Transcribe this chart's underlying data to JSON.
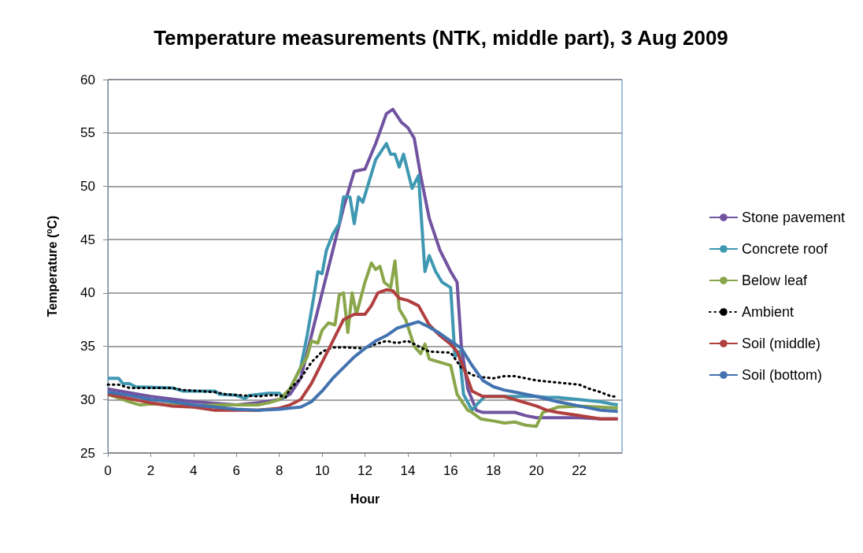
{
  "chart_data": {
    "type": "line",
    "title": "Temperature measurements (NTK, middle part), 3 Aug 2009",
    "xlabel": "Hour",
    "ylabel": "Temperature ($^{o}$C)",
    "xlim": [
      0,
      24
    ],
    "xticks": [
      0,
      2,
      4,
      6,
      8,
      10,
      12,
      14,
      16,
      18,
      20,
      22
    ],
    "ylim": [
      25,
      60
    ],
    "yticks": [
      25,
      30,
      35,
      40,
      45,
      50,
      55,
      60
    ],
    "grid": "y",
    "legend": "right",
    "marker": "none",
    "series": [
      {
        "name": "Stone pavement",
        "color": "#7153a0",
        "line_style": "solid",
        "x": [
          0,
          2,
          4,
          6,
          7,
          8,
          8.5,
          9,
          9.5,
          10,
          10.5,
          11,
          11.5,
          12,
          12.5,
          13,
          13.3,
          13.7,
          14,
          14.3,
          14.6,
          15,
          15.5,
          16,
          16.3,
          16.5,
          16.8,
          17.2,
          17.5,
          18,
          19,
          19.5,
          20,
          21,
          22,
          23,
          23.8
        ],
        "values": [
          31,
          30.3,
          29.8,
          29.5,
          29.7,
          30,
          30.5,
          32,
          36,
          40,
          44,
          48,
          51.4,
          51.6,
          54,
          56.8,
          57.2,
          56,
          55.5,
          54.5,
          51,
          47,
          44,
          42,
          41,
          35,
          31,
          29,
          28.8,
          28.8,
          28.8,
          28.5,
          28.3,
          28.3,
          28.3,
          28.2,
          28.2
        ]
      },
      {
        "name": "Concrete roof",
        "color": "#3f98b2",
        "line_style": "solid",
        "x": [
          0,
          0.5,
          0.7,
          1,
          1.3,
          3,
          3.5,
          5,
          5.2,
          6,
          6.4,
          6.6,
          7.5,
          8,
          8.2,
          8.5,
          9,
          9.3,
          9.6,
          9.8,
          10,
          10.2,
          10.5,
          10.8,
          11,
          11.3,
          11.5,
          11.7,
          11.9,
          12.2,
          12.5,
          13,
          13.2,
          13.4,
          13.6,
          13.8,
          14.2,
          14.5,
          14.8,
          15,
          15.3,
          15.6,
          16,
          16.2,
          16.4,
          16.6,
          17,
          17.2,
          17.6,
          18,
          19,
          20,
          20.5,
          21,
          23,
          23.5,
          23.8
        ],
        "values": [
          32,
          32,
          31.5,
          31.5,
          31.2,
          31.1,
          30.8,
          30.8,
          30.5,
          30.4,
          30.1,
          30.4,
          30.6,
          30.6,
          30.2,
          31,
          33,
          36,
          39.5,
          42,
          41.8,
          44,
          45.5,
          46.5,
          49,
          49,
          46.5,
          49,
          48.5,
          50.5,
          52.5,
          54,
          53,
          53,
          51.8,
          53,
          49.8,
          51,
          42,
          43.5,
          42,
          41,
          40.5,
          34,
          34.5,
          30.5,
          29,
          29.5,
          30.3,
          30.3,
          30.3,
          30.3,
          30.2,
          30.2,
          29.8,
          29.6,
          29.5
        ]
      },
      {
        "name": "Below leaf",
        "color": "#8aa64a",
        "line_style": "solid",
        "x": [
          0,
          1,
          1.5,
          2,
          3,
          4,
          5,
          6,
          7,
          7.5,
          8,
          8.5,
          9,
          9.3,
          9.5,
          9.8,
          10,
          10.3,
          10.6,
          10.8,
          11,
          11.2,
          11.4,
          11.6,
          12,
          12.3,
          12.5,
          12.7,
          12.9,
          13.2,
          13.4,
          13.6,
          13.9,
          14.3,
          14.6,
          14.8,
          15,
          15.5,
          16,
          16.3,
          16.8,
          17,
          17.4,
          18,
          18.5,
          19,
          19.5,
          20,
          20.3,
          21,
          22,
          23,
          23.8
        ],
        "values": [
          30.5,
          29.8,
          29.5,
          29.6,
          29.5,
          29.4,
          29.5,
          29.5,
          29.5,
          29.7,
          30,
          31,
          33,
          34,
          35.5,
          35.3,
          36.5,
          37.2,
          37,
          39.8,
          40,
          36.3,
          40,
          38,
          41,
          42.8,
          42.2,
          42.5,
          41,
          40.5,
          43,
          38.5,
          37.5,
          35,
          34.3,
          35.2,
          33.8,
          33.5,
          33.2,
          30.5,
          29,
          28.8,
          28.2,
          28,
          27.8,
          27.9,
          27.6,
          27.5,
          28.8,
          29.3,
          29.4,
          29.3,
          29.2
        ]
      },
      {
        "name": "Ambient",
        "color": "#000000",
        "line_style": "dotted",
        "x": [
          0,
          0.5,
          1,
          3,
          3.5,
          5,
          5.5,
          7,
          7.5,
          8,
          8.3,
          8.5,
          9,
          9.5,
          10,
          10.5,
          11,
          12,
          12.5,
          13,
          13.5,
          14,
          14.5,
          15,
          16,
          16.5,
          17,
          17.5,
          18,
          18.5,
          19,
          20,
          21,
          22,
          22.5,
          23,
          23.5,
          23.8
        ],
        "values": [
          31.4,
          31.4,
          31.1,
          31.1,
          30.9,
          30.7,
          30.5,
          30.3,
          30.4,
          30.4,
          30.2,
          31,
          32,
          33.5,
          34.5,
          34.9,
          34.9,
          34.8,
          35.2,
          35.5,
          35.3,
          35.5,
          35,
          34.5,
          34.4,
          33,
          32.3,
          32.1,
          32,
          32.2,
          32.2,
          31.8,
          31.6,
          31.4,
          31,
          30.7,
          30.3,
          30.3
        ]
      },
      {
        "name": "Soil (middle)",
        "color": "#b0403f",
        "line_style": "solid",
        "x": [
          0,
          1,
          2,
          3,
          4,
          5,
          6,
          7,
          8,
          8.5,
          9,
          9.5,
          10,
          10.5,
          11,
          11.5,
          12,
          12.3,
          12.6,
          13,
          13.3,
          13.6,
          14,
          14.5,
          15,
          15.5,
          16,
          16.3,
          16.6,
          17,
          17.5,
          18,
          18.5,
          19,
          20,
          20.5,
          21,
          22,
          23,
          23.8
        ],
        "values": [
          30.5,
          30.1,
          29.7,
          29.4,
          29.3,
          29,
          29,
          29,
          29.2,
          29.5,
          30,
          31.5,
          33.5,
          35.5,
          37.5,
          38,
          38,
          38.8,
          40,
          40.3,
          40.2,
          39.5,
          39.3,
          38.8,
          37,
          36,
          35.2,
          34.5,
          33,
          30.8,
          30.3,
          30.3,
          30.3,
          30,
          29.4,
          29,
          28.8,
          28.5,
          28.2,
          28.2
        ]
      },
      {
        "name": "Soil (bottom)",
        "color": "#4272b0",
        "line_style": "solid",
        "x": [
          0,
          1,
          2,
          3,
          4,
          5,
          6,
          7,
          8,
          8.5,
          9,
          9.5,
          10,
          10.5,
          11,
          11.5,
          12,
          12.5,
          13,
          13.5,
          14,
          14.5,
          15,
          15.5,
          16,
          16.5,
          17,
          17.5,
          18,
          18.5,
          19,
          20,
          21,
          22,
          23,
          23.8
        ],
        "values": [
          30.7,
          30.4,
          30,
          29.8,
          29.5,
          29.3,
          29.1,
          29,
          29.1,
          29.2,
          29.3,
          29.8,
          30.8,
          32,
          33,
          34,
          34.8,
          35.5,
          36,
          36.7,
          37,
          37.3,
          36.8,
          36.2,
          35.5,
          34.8,
          33.2,
          31.8,
          31.2,
          30.9,
          30.7,
          30.3,
          29.8,
          29.4,
          29,
          28.9
        ]
      }
    ]
  }
}
